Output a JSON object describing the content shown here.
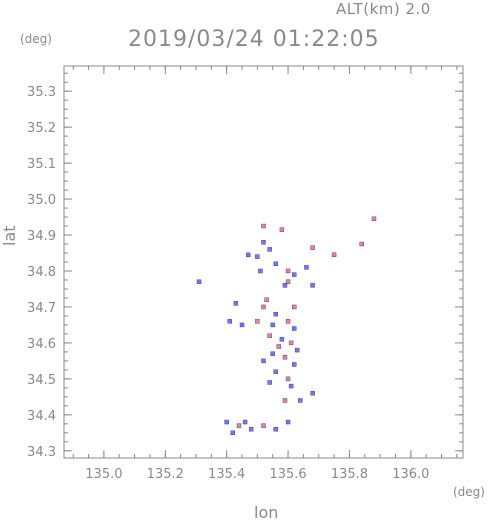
{
  "header": {
    "altitude_label": "ALT(km) 2.0",
    "timestamp": "2019/03/24 01:22:05"
  },
  "chart_data": {
    "type": "scatter",
    "title": "2019/03/24 01:22:05",
    "subtitle": "ALT(km) 2.0",
    "xlabel": "lon",
    "ylabel": "lat",
    "x_unit": "(deg)",
    "y_unit": "(deg)",
    "xlim": [
      134.87,
      136.17
    ],
    "ylim": [
      34.28,
      35.37
    ],
    "x_ticks": [
      "135.0",
      "135.2",
      "135.4",
      "135.6",
      "135.8",
      "136.0"
    ],
    "y_ticks": [
      "34.3",
      "34.4",
      "34.5",
      "34.6",
      "34.7",
      "34.8",
      "34.9",
      "35.0",
      "35.1",
      "35.2",
      "35.3"
    ],
    "grid": false,
    "colors": {
      "positive": "#e85a5a",
      "negative": "#4a4ae0",
      "edge": "#2a2aa0",
      "axis": "#8a8a8a"
    },
    "points": [
      {
        "x": 135.88,
        "y": 34.945,
        "v": 1
      },
      {
        "x": 135.52,
        "y": 34.925,
        "v": 1
      },
      {
        "x": 135.58,
        "y": 34.915,
        "v": 1
      },
      {
        "x": 135.84,
        "y": 34.875,
        "v": 1
      },
      {
        "x": 135.68,
        "y": 34.865,
        "v": 1
      },
      {
        "x": 135.75,
        "y": 34.845,
        "v": 1
      },
      {
        "x": 135.52,
        "y": 34.88,
        "v": -1
      },
      {
        "x": 135.54,
        "y": 34.86,
        "v": -1
      },
      {
        "x": 135.5,
        "y": 34.84,
        "v": -1
      },
      {
        "x": 135.47,
        "y": 34.845,
        "v": -1
      },
      {
        "x": 135.56,
        "y": 34.82,
        "v": -1
      },
      {
        "x": 135.51,
        "y": 34.8,
        "v": -1
      },
      {
        "x": 135.6,
        "y": 34.8,
        "v": 1
      },
      {
        "x": 135.62,
        "y": 34.79,
        "v": -1
      },
      {
        "x": 135.66,
        "y": 34.81,
        "v": -1
      },
      {
        "x": 135.6,
        "y": 34.77,
        "v": 1
      },
      {
        "x": 135.68,
        "y": 34.76,
        "v": -1
      },
      {
        "x": 135.31,
        "y": 34.77,
        "v": -1
      },
      {
        "x": 135.59,
        "y": 34.76,
        "v": -1
      },
      {
        "x": 135.53,
        "y": 34.72,
        "v": 1
      },
      {
        "x": 135.52,
        "y": 34.7,
        "v": 1
      },
      {
        "x": 135.56,
        "y": 34.68,
        "v": -1
      },
      {
        "x": 135.43,
        "y": 34.71,
        "v": -1
      },
      {
        "x": 135.62,
        "y": 34.7,
        "v": 1
      },
      {
        "x": 135.41,
        "y": 34.66,
        "v": -1
      },
      {
        "x": 135.45,
        "y": 34.65,
        "v": -1
      },
      {
        "x": 135.5,
        "y": 34.66,
        "v": 1
      },
      {
        "x": 135.55,
        "y": 34.65,
        "v": -1
      },
      {
        "x": 135.6,
        "y": 34.66,
        "v": 1
      },
      {
        "x": 135.62,
        "y": 34.64,
        "v": -1
      },
      {
        "x": 135.54,
        "y": 34.62,
        "v": 1
      },
      {
        "x": 135.58,
        "y": 34.61,
        "v": -1
      },
      {
        "x": 135.61,
        "y": 34.6,
        "v": 1
      },
      {
        "x": 135.57,
        "y": 34.59,
        "v": 1
      },
      {
        "x": 135.63,
        "y": 34.58,
        "v": -1
      },
      {
        "x": 135.55,
        "y": 34.57,
        "v": -1
      },
      {
        "x": 135.59,
        "y": 34.56,
        "v": 1
      },
      {
        "x": 135.52,
        "y": 34.55,
        "v": -1
      },
      {
        "x": 135.62,
        "y": 34.54,
        "v": -1
      },
      {
        "x": 135.56,
        "y": 34.52,
        "v": -1
      },
      {
        "x": 135.6,
        "y": 34.5,
        "v": 1
      },
      {
        "x": 135.54,
        "y": 34.49,
        "v": -1
      },
      {
        "x": 135.61,
        "y": 34.48,
        "v": -1
      },
      {
        "x": 135.68,
        "y": 34.46,
        "v": -1
      },
      {
        "x": 135.59,
        "y": 34.44,
        "v": 1
      },
      {
        "x": 135.64,
        "y": 34.44,
        "v": -1
      },
      {
        "x": 135.4,
        "y": 34.38,
        "v": -1
      },
      {
        "x": 135.44,
        "y": 34.37,
        "v": 1
      },
      {
        "x": 135.48,
        "y": 34.36,
        "v": -1
      },
      {
        "x": 135.52,
        "y": 34.37,
        "v": 1
      },
      {
        "x": 135.56,
        "y": 34.36,
        "v": -1
      },
      {
        "x": 135.42,
        "y": 34.35,
        "v": -1
      },
      {
        "x": 135.6,
        "y": 34.38,
        "v": -1
      },
      {
        "x": 135.46,
        "y": 34.38,
        "v": -1
      }
    ]
  }
}
